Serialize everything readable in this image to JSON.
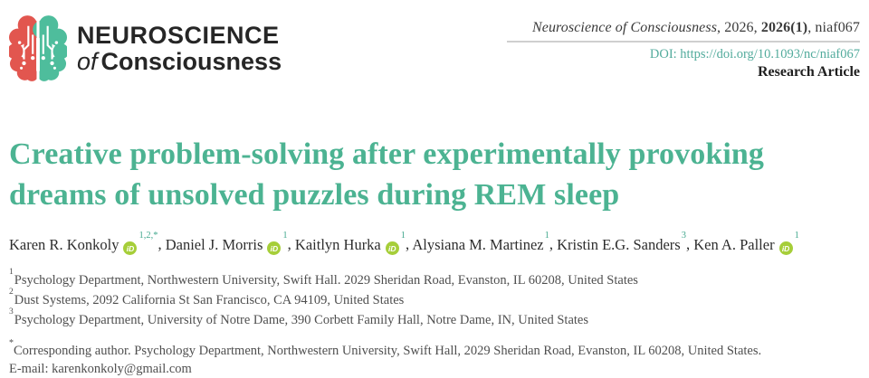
{
  "journal": {
    "logo_line1": "NEUROSCIENCE",
    "logo_line2_italic": "of",
    "logo_line2_bold": "Consciousness",
    "citation_journal": "Neuroscience of Consciousness",
    "citation_sep1": ", 2026, ",
    "citation_issue": "2026(1)",
    "citation_sep2": ", niaf067",
    "doi": "DOI: https://doi.org/10.1093/nc/niaf067",
    "article_type": "Research Article"
  },
  "article": {
    "title": "Creative problem-solving after experimentally provoking dreams of unsolved puzzles during REM sleep",
    "authors": [
      {
        "name": "Karen R. Konkoly",
        "orcid": true,
        "sup": "1,2,*"
      },
      {
        "name": "Daniel J. Morris",
        "orcid": true,
        "sup": "1"
      },
      {
        "name": "Kaitlyn Hurka",
        "orcid": true,
        "sup": "1"
      },
      {
        "name": "Alysiana M. Martinez",
        "orcid": false,
        "sup": "1"
      },
      {
        "name": "Kristin E.G. Sanders",
        "orcid": false,
        "sup": "3"
      },
      {
        "name": "Ken A. Paller",
        "orcid": true,
        "sup": "1"
      }
    ],
    "orcid_label": "iD",
    "affiliations": [
      {
        "sup": "1",
        "text": "Psychology Department, Northwestern University, Swift Hall. 2029 Sheridan Road, Evanston, IL 60208, United States"
      },
      {
        "sup": "2",
        "text": "Dust Systems, 2092 California St San Francisco, CA 94109, United States"
      },
      {
        "sup": "3",
        "text": "Psychology Department, University of Notre Dame, 390 Corbett Family Hall, Notre Dame, IN, United States"
      }
    ],
    "corresponding": {
      "sup": "*",
      "text": "Corresponding author. Psychology Department, Northwestern University, Swift Hall, 2029 Sheridan Road, Evanston, IL 60208, United States."
    },
    "email_label": "E-mail: ",
    "email": "karenkonkoly@gmail.com"
  },
  "colors": {
    "title_teal": "#4cb392",
    "doi_teal": "#52ab9c",
    "author_sup_teal": "#45a98f",
    "logo_red": "#e2564f",
    "logo_green": "#4ebd9c",
    "orcid_green": "#a6ce39",
    "rule_gray": "#cfcfcf"
  },
  "icons": {
    "brain_logo": "brain-circuit-icon",
    "orcid": "orcid-id-icon"
  }
}
